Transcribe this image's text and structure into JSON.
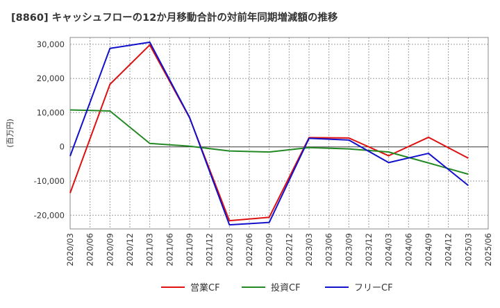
{
  "chart_data": {
    "type": "line",
    "title": "[8860]  キャッシュフローの12か月移動合計の対前年同期増減額の推移",
    "xlabel": "",
    "ylabel": "(百万円)",
    "ylim": [
      -24000,
      32000
    ],
    "yticks": [
      -20000,
      -10000,
      0,
      10000,
      20000,
      30000
    ],
    "ytick_labels": [
      "-20,000",
      "-10,000",
      "0",
      "10,000",
      "20,000",
      "30,000"
    ],
    "categories": [
      "2020/03",
      "2020/06",
      "2020/09",
      "2020/12",
      "2021/03",
      "2021/06",
      "2021/09",
      "2021/12",
      "2022/03",
      "2022/06",
      "2022/09",
      "2022/12",
      "2023/03",
      "2023/06",
      "2023/09",
      "2023/12",
      "2024/03",
      "2024/06",
      "2024/09",
      "2024/12",
      "2025/03",
      "2025/06"
    ],
    "grid": true,
    "legend_position": "bottom",
    "series": [
      {
        "name": "営業CF",
        "color": "#dd1111",
        "values": [
          -13500,
          null,
          18300,
          null,
          29800,
          null,
          8500,
          null,
          -21600,
          null,
          -20600,
          null,
          2700,
          null,
          2600,
          null,
          -2600,
          null,
          2800,
          null,
          -3300,
          null
        ]
      },
      {
        "name": "投資CF",
        "color": "#228822",
        "values": [
          10800,
          null,
          10500,
          null,
          1000,
          null,
          200,
          null,
          -1200,
          null,
          -1500,
          null,
          -200,
          null,
          -600,
          null,
          -1500,
          null,
          -4700,
          null,
          -8000,
          null
        ]
      },
      {
        "name": "フリーCF",
        "color": "#1111cc",
        "values": [
          -2700,
          null,
          28800,
          null,
          30600,
          null,
          8600,
          null,
          -22800,
          null,
          -22100,
          null,
          2500,
          null,
          2000,
          null,
          -4600,
          null,
          -1900,
          null,
          -11300,
          null
        ]
      }
    ]
  }
}
